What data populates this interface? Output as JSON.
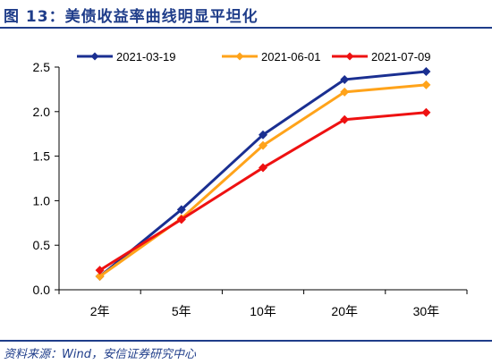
{
  "figure": {
    "title": "图 13：美债收益率曲线明显平坦化",
    "source": "资料来源：Wind，安信证券研究中心"
  },
  "chart_data": {
    "type": "line",
    "categories": [
      "2年",
      "5年",
      "10年",
      "20年",
      "30年"
    ],
    "ylim": [
      0,
      2.5
    ],
    "yticks": [
      "0.0",
      "0.5",
      "1.0",
      "1.5",
      "2.0",
      "2.5"
    ],
    "grid": false,
    "legend_position": "top",
    "series": [
      {
        "name": "2021-03-19",
        "color": "#1a2f91",
        "values": [
          0.15,
          0.9,
          1.74,
          2.36,
          2.45
        ]
      },
      {
        "name": "2021-06-01",
        "color": "#ffa31a",
        "values": [
          0.15,
          0.8,
          1.62,
          2.22,
          2.3
        ]
      },
      {
        "name": "2021-07-09",
        "color": "#ee1111",
        "values": [
          0.22,
          0.79,
          1.37,
          1.91,
          1.99
        ]
      }
    ]
  }
}
